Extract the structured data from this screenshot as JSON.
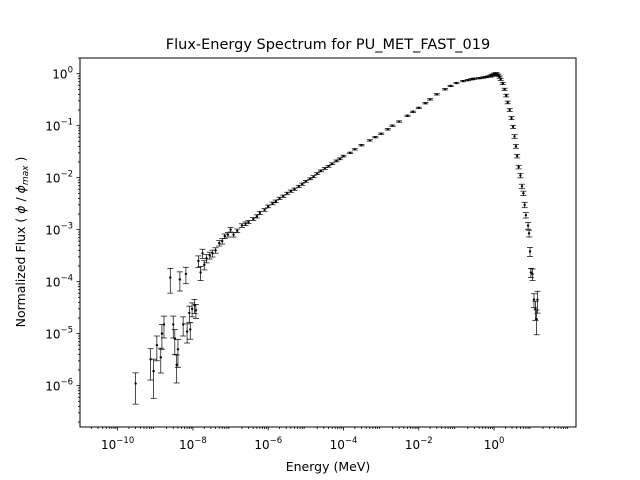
{
  "chart_data": {
    "type": "scatter",
    "title": "Flux-Energy Spectrum for PU_MET_FAST_019",
    "xlabel": "Energy (MeV)",
    "ylabel": "Normalized Flux ( ϕ / ϕmax )",
    "ylabel_parts": {
      "pre": "Normalized Flux ( ",
      "phi": "ϕ",
      "slash": " / ",
      "sub": "max",
      "post": " )"
    },
    "x_scale": "log",
    "y_scale": "log",
    "xlim": [
      1e-11,
      150
    ],
    "ylim": [
      1.6e-07,
      2.0
    ],
    "grid": false,
    "x_ticks": [
      {
        "value": 1e-10,
        "base": "10",
        "exp": "−10"
      },
      {
        "value": 1e-08,
        "base": "10",
        "exp": "−8"
      },
      {
        "value": 1e-06,
        "base": "10",
        "exp": "−6"
      },
      {
        "value": 0.0001,
        "base": "10",
        "exp": "−4"
      },
      {
        "value": 0.01,
        "base": "10",
        "exp": "−2"
      },
      {
        "value": 1,
        "base": "10",
        "exp": "0"
      }
    ],
    "y_ticks": [
      {
        "value": 1e-06,
        "base": "10",
        "exp": "−6"
      },
      {
        "value": 1e-05,
        "base": "10",
        "exp": "−5"
      },
      {
        "value": 0.0001,
        "base": "10",
        "exp": "−4"
      },
      {
        "value": 0.001,
        "base": "10",
        "exp": "−3"
      },
      {
        "value": 0.01,
        "base": "10",
        "exp": "−2"
      },
      {
        "value": 0.1,
        "base": "10",
        "exp": "−1"
      },
      {
        "value": 1,
        "base": "10",
        "exp": "0"
      }
    ],
    "series": [
      {
        "marker": "point-with-errorbar",
        "color": "#000000",
        "x": [
          3e-10,
          7.5e-10,
          9e-10,
          1.1e-09,
          1.4e-09,
          1.5e-09,
          1.7e-09,
          2.5e-09,
          3e-09,
          3.3e-09,
          3.7e-09,
          4e-09,
          4.5e-09,
          5.5e-09,
          6.5e-09,
          7e-09,
          8e-09,
          8.5e-09,
          9.5e-09,
          1.1e-08,
          1.2e-08,
          1.4e-08,
          1.6e-08,
          1.8e-08,
          2e-08,
          2.3e-08,
          2.8e-08,
          3.3e-08,
          4e-08,
          5e-08,
          6e-08,
          7e-08,
          8.5e-08,
          1e-07,
          1.2e-07,
          1.5e-07,
          2e-07,
          2.5e-07,
          3e-07,
          4e-07,
          5e-07,
          6e-07,
          8e-07,
          1e-06,
          1.3e-06,
          1.6e-06,
          2e-06,
          2.5e-06,
          3.2e-06,
          4e-06,
          5e-06,
          6.5e-06,
          8e-06,
          1e-05,
          1.3e-05,
          1.6e-05,
          2e-05,
          2.5e-05,
          3.2e-05,
          4e-05,
          5e-05,
          6.5e-05,
          8e-05,
          0.0001,
          0.00015,
          0.0002,
          0.0003,
          0.0005,
          0.0007,
          0.001,
          0.0015,
          0.002,
          0.003,
          0.005,
          0.007,
          0.01,
          0.015,
          0.02,
          0.03,
          0.05,
          0.07,
          0.1,
          0.15,
          0.2,
          0.25,
          0.3,
          0.4,
          0.5,
          0.6,
          0.7,
          0.8,
          0.9,
          1.0,
          1.1,
          1.2,
          1.3,
          1.4,
          1.5,
          1.7,
          1.9,
          2.1,
          2.3,
          2.6,
          2.9,
          3.2,
          3.5,
          3.8,
          4.1,
          4.5,
          5.0,
          5.5,
          6.0,
          6.5,
          7.0,
          8.0,
          8.5,
          9.0,
          9.5,
          10.5,
          11.5,
          12.5,
          13.5,
          14.2
        ],
        "y": [
          1.1e-06,
          3.2e-06,
          1.9e-06,
          6e-06,
          3.5e-06,
          1e-05,
          1.5e-05,
          0.00012,
          1.5e-05,
          8e-06,
          2.5e-06,
          5e-06,
          0.00011,
          1.5e-05,
          0.00014,
          1.1e-05,
          2.5e-05,
          1.2e-05,
          3e-05,
          3.5e-05,
          2.8e-05,
          0.00025,
          0.00015,
          0.00035,
          0.00021,
          0.00028,
          0.00032,
          0.00035,
          0.0004,
          0.00055,
          0.0006,
          0.00075,
          0.0008,
          0.001,
          0.0008,
          0.00095,
          0.0012,
          0.0013,
          0.0014,
          0.0016,
          0.0018,
          0.0021,
          0.0024,
          0.0028,
          0.0032,
          0.0035,
          0.004,
          0.0044,
          0.005,
          0.0055,
          0.006,
          0.0068,
          0.0075,
          0.0085,
          0.0095,
          0.0105,
          0.012,
          0.0135,
          0.015,
          0.0165,
          0.0185,
          0.021,
          0.023,
          0.026,
          0.03,
          0.035,
          0.042,
          0.052,
          0.06,
          0.07,
          0.085,
          0.1,
          0.12,
          0.155,
          0.185,
          0.22,
          0.27,
          0.32,
          0.4,
          0.5,
          0.58,
          0.66,
          0.72,
          0.75,
          0.78,
          0.8,
          0.82,
          0.84,
          0.86,
          0.88,
          0.9,
          0.93,
          0.97,
          1.0,
          0.98,
          0.93,
          0.86,
          0.78,
          0.65,
          0.5,
          0.38,
          0.28,
          0.2,
          0.14,
          0.095,
          0.062,
          0.04,
          0.026,
          0.016,
          0.011,
          0.0068,
          0.005,
          0.003,
          0.0019,
          0.0012,
          0.00085,
          0.00038,
          0.00015,
          0.00014,
          4.5e-05,
          3e-05,
          1.9e-05,
          4.5e-05
        ],
        "y_rel_err": [
          0.6,
          0.6,
          0.7,
          0.5,
          0.5,
          0.5,
          0.45,
          0.5,
          0.45,
          0.5,
          0.55,
          0.55,
          0.4,
          0.4,
          0.35,
          0.4,
          0.35,
          0.35,
          0.3,
          0.3,
          0.3,
          0.25,
          0.3,
          0.2,
          0.2,
          0.18,
          0.15,
          0.15,
          0.12,
          0.12,
          0.12,
          0.1,
          0.1,
          0.1,
          0.1,
          0.08,
          0.08,
          0.08,
          0.07,
          0.07,
          0.07,
          0.07,
          0.06,
          0.06,
          0.06,
          0.06,
          0.05,
          0.05,
          0.05,
          0.05,
          0.05,
          0.05,
          0.05,
          0.04,
          0.04,
          0.04,
          0.04,
          0.04,
          0.04,
          0.04,
          0.04,
          0.04,
          0.04,
          0.04,
          0.03,
          0.03,
          0.03,
          0.03,
          0.03,
          0.03,
          0.03,
          0.03,
          0.03,
          0.03,
          0.03,
          0.03,
          0.03,
          0.03,
          0.03,
          0.03,
          0.03,
          0.03,
          0.03,
          0.03,
          0.03,
          0.03,
          0.03,
          0.03,
          0.03,
          0.03,
          0.05,
          0.05,
          0.05,
          0.05,
          0.05,
          0.05,
          0.05,
          0.05,
          0.05,
          0.05,
          0.06,
          0.06,
          0.06,
          0.07,
          0.07,
          0.08,
          0.08,
          0.08,
          0.08,
          0.1,
          0.1,
          0.1,
          0.12,
          0.12,
          0.15,
          0.15,
          0.2,
          0.2,
          0.25,
          0.3,
          0.4,
          0.5,
          0.45
        ]
      }
    ]
  }
}
